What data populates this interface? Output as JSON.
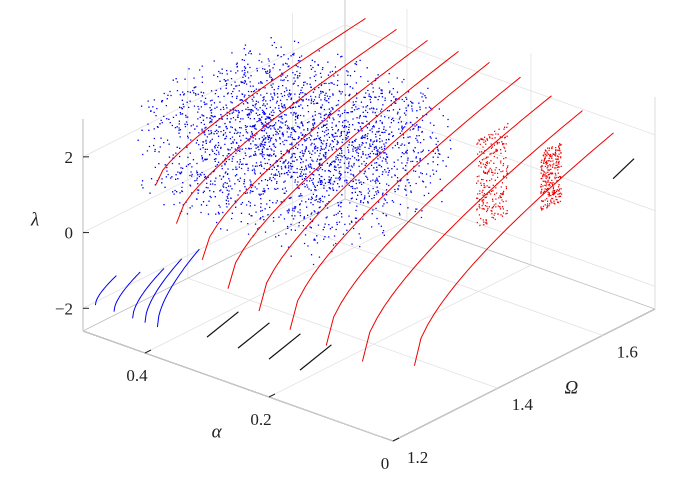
{
  "chart_data": {
    "type": "scatter",
    "title": "",
    "axes": {
      "x": {
        "label": "α",
        "ticks": [
          "0",
          "0.2",
          "0.4"
        ],
        "tick_values": [
          0,
          0.2,
          0.4
        ],
        "range": [
          0,
          0.5
        ]
      },
      "y": {
        "label": "Ω",
        "ticks": [
          "1.2",
          "1.4",
          "1.6"
        ],
        "tick_values": [
          1.2,
          1.4,
          1.6
        ],
        "range": [
          1.2,
          1.7
        ]
      },
      "z": {
        "label": "λ",
        "ticks": [
          "−2",
          "0",
          "2"
        ],
        "tick_values": [
          -2,
          0,
          2
        ],
        "range": [
          -2.6,
          3
        ]
      }
    },
    "grid": true,
    "box": "3d",
    "colors": {
      "red": "#ee0000",
      "blue": "#0000ee",
      "black": "#111111"
    },
    "red_curves": [
      {
        "alpha": 0.45,
        "omega_range": [
          1.28,
          1.68
        ],
        "lambda_range": [
          1.0,
          2.6
        ]
      },
      {
        "alpha": 0.4,
        "omega_range": [
          1.26,
          1.68
        ],
        "lambda_range": [
          0.4,
          2.6
        ]
      },
      {
        "alpha": 0.35,
        "omega_range": [
          1.25,
          1.68
        ],
        "lambda_range": [
          -0.2,
          2.6
        ]
      },
      {
        "alpha": 0.3,
        "omega_range": [
          1.24,
          1.68
        ],
        "lambda_range": [
          -0.6,
          2.6
        ]
      },
      {
        "alpha": 0.25,
        "omega_range": [
          1.24,
          1.68
        ],
        "lambda_range": [
          -0.9,
          2.6
        ]
      },
      {
        "alpha": 0.2,
        "omega_range": [
          1.24,
          1.68
        ],
        "lambda_range": [
          -1.1,
          2.5
        ]
      },
      {
        "alpha": 0.15,
        "omega_range": [
          1.25,
          1.68
        ],
        "lambda_range": [
          -1.3,
          2.3
        ]
      },
      {
        "alpha": 0.1,
        "omega_range": [
          1.26,
          1.68
        ],
        "lambda_range": [
          -1.5,
          2.2
        ]
      },
      {
        "alpha": 0.05,
        "omega_range": [
          1.3,
          1.68
        ],
        "lambda_range": [
          -1.6,
          1.9
        ]
      }
    ],
    "blue_curves": [
      {
        "alpha": 0.48,
        "omega_range": [
          1.2,
          1.24
        ],
        "lambda_range": [
          -1.8,
          -1.3
        ]
      },
      {
        "alpha": 0.45,
        "omega_range": [
          1.2,
          1.25
        ],
        "lambda_range": [
          -1.8,
          -1.1
        ]
      },
      {
        "alpha": 0.42,
        "omega_range": [
          1.2,
          1.26
        ],
        "lambda_range": [
          -1.8,
          -0.9
        ]
      },
      {
        "alpha": 0.4,
        "omega_range": [
          1.2,
          1.27
        ],
        "lambda_range": [
          -1.8,
          -0.6
        ]
      },
      {
        "alpha": 0.38,
        "omega_range": [
          1.2,
          1.28
        ],
        "lambda_range": [
          -1.8,
          -0.3
        ]
      }
    ],
    "black_segments": [
      {
        "alpha": 0.3,
        "omega_range": [
          1.2,
          1.26
        ],
        "lambda": -1.6
      },
      {
        "alpha": 0.25,
        "omega_range": [
          1.2,
          1.26
        ],
        "lambda": -1.6
      },
      {
        "alpha": 0.2,
        "omega_range": [
          1.2,
          1.26
        ],
        "lambda": -1.6
      },
      {
        "alpha": 0.15,
        "omega_range": [
          1.2,
          1.26
        ],
        "lambda": -1.6
      },
      {
        "alpha": 0.0,
        "omega_range": [
          1.62,
          1.66
        ],
        "lambda": 1.4
      }
    ],
    "blue_chaotic_region": {
      "alpha_range": [
        0.2,
        0.5
      ],
      "omega_range": [
        1.3,
        1.56
      ],
      "lambda_range": [
        0.0,
        3.0
      ]
    },
    "red_bands": [
      {
        "alpha": 0.12,
        "omega_range": [
          1.5,
          1.56
        ],
        "lambda_range": [
          0.2,
          2.6
        ]
      },
      {
        "alpha": 0.05,
        "omega_range": [
          1.54,
          1.58
        ],
        "lambda_range": [
          0.8,
          2.4
        ]
      }
    ]
  }
}
